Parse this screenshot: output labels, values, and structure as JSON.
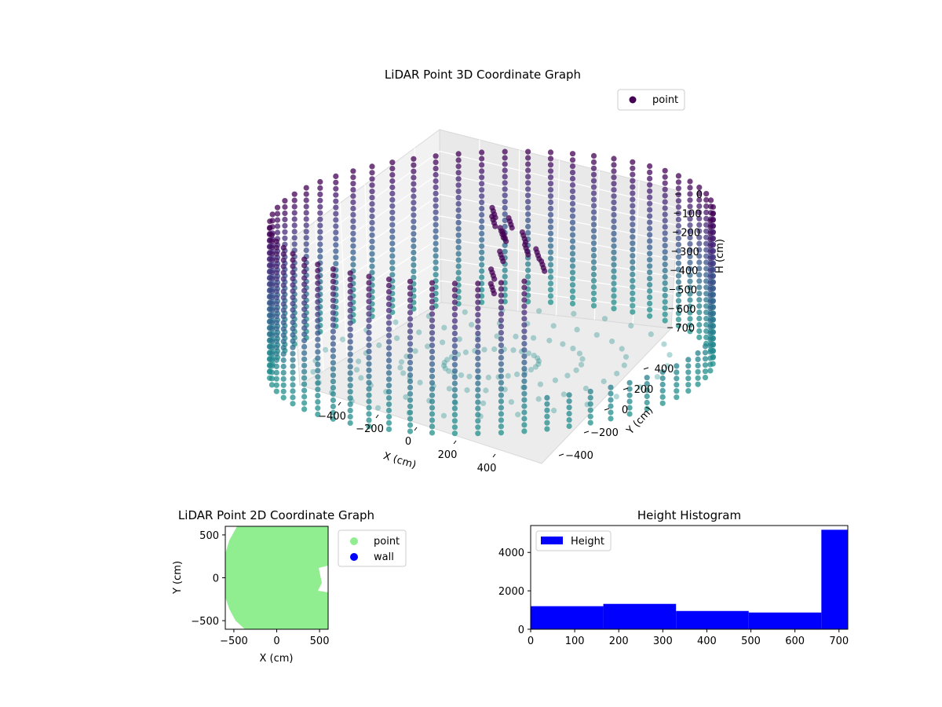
{
  "chart_data": [
    {
      "type": "scatter",
      "projection": "3d",
      "title": "LiDAR Point 3D Coordinate Graph",
      "xlabel": "X (cm)",
      "ylabel": "Y (cm)",
      "zlabel": "H (cm)",
      "x_ticks": [
        "−400",
        "−200",
        "0",
        "200",
        "400"
      ],
      "y_ticks": [
        "−400",
        "−200",
        "0",
        "200",
        "400"
      ],
      "z_ticks": [
        "0",
        "100",
        "200",
        "300",
        "400",
        "500",
        "600",
        "700"
      ],
      "zlim": [
        700,
        0
      ],
      "z_inverted": true,
      "colormap": "viridis",
      "legend": {
        "position": "top-right",
        "entries": [
          {
            "label": "point",
            "color": "#440154"
          }
        ]
      },
      "structure": {
        "shape": "cylindrical wall of scanned points with ceiling structure",
        "radius_cm": 560,
        "height_range_cm": [
          0,
          720
        ],
        "opening_side": "+X"
      }
    },
    {
      "type": "scatter",
      "title": "LiDAR Point 2D Coordinate Graph",
      "xlabel": "X (cm)",
      "ylabel": "Y (cm)",
      "x_ticks": [
        "−500",
        "0",
        "500"
      ],
      "y_ticks": [
        "500",
        "0",
        "−500"
      ],
      "xlim": [
        -600,
        600
      ],
      "ylim": [
        -600,
        600
      ],
      "legend": {
        "position": "outside-right",
        "entries": [
          {
            "label": "point",
            "color": "#90ee90"
          },
          {
            "label": "wall",
            "color": "#0000ff"
          }
        ]
      }
    },
    {
      "type": "bar",
      "subtype": "histogram",
      "title": "Height Histogram",
      "bin_edges": [
        0,
        165,
        330,
        495,
        660,
        720
      ],
      "values": [
        1200,
        1320,
        950,
        870,
        5180
      ],
      "xlim": [
        0,
        720
      ],
      "ylim": [
        0,
        5400
      ],
      "x_ticks": [
        "0",
        "100",
        "200",
        "300",
        "400",
        "500",
        "600",
        "700"
      ],
      "y_ticks": [
        "0",
        "2000",
        "4000"
      ],
      "color": "#0000ff",
      "legend": {
        "position": "top-left",
        "entries": [
          {
            "label": "Height",
            "color": "#0000ff"
          }
        ]
      }
    }
  ]
}
